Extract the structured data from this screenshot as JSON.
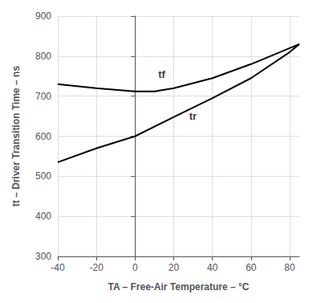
{
  "chart_data": {
    "type": "line",
    "xlabel": "TA – Free-Air Temperature – °C",
    "ylabel": "tt – Driver Transition Time – ns",
    "series": [
      {
        "x": [
          -40,
          -20,
          0,
          10,
          20,
          40,
          60,
          80,
          85
        ],
        "values": [
          730,
          720,
          712,
          712,
          720,
          745,
          780,
          820,
          830
        ],
        "color": "#000000"
      },
      {
        "x": [
          -40,
          -20,
          0,
          20,
          40,
          60,
          80,
          85
        ],
        "values": [
          535,
          570,
          600,
          648,
          695,
          745,
          810,
          830
        ],
        "color": "#000000"
      }
    ],
    "annotations": [
      {
        "text": "tf",
        "x": 12,
        "y": 742
      },
      {
        "text": "tr",
        "x": 28,
        "y": 638
      }
    ],
    "xlim": [
      -40,
      85
    ],
    "ylim": [
      300,
      900
    ],
    "xticks": [
      -40,
      -20,
      0,
      20,
      40,
      60,
      80
    ],
    "yticks": [
      300,
      400,
      500,
      600,
      700,
      800,
      900
    ],
    "grid": true
  }
}
